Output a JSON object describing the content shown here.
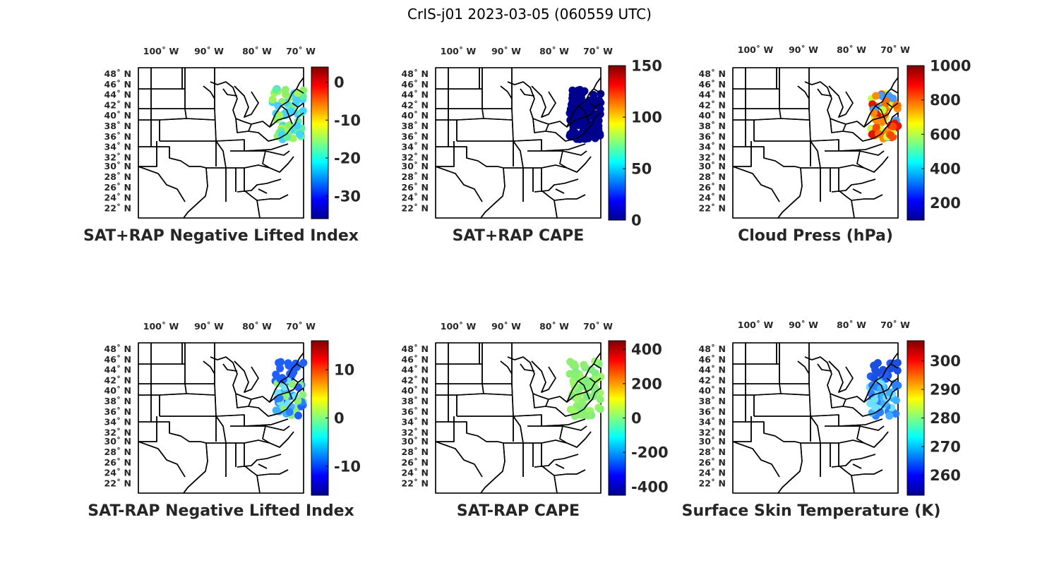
{
  "title": "CrIS-j01 2023-03-05 (060559 UTC)",
  "lon_ticks": [
    "100˚ W",
    "90˚ W",
    "80˚ W",
    "70˚ W"
  ],
  "lat_ticks": [
    "48˚ N",
    "46˚ N",
    "44˚ N",
    "42˚ N",
    "40˚ N",
    "38˚ N",
    "36˚ N",
    "34˚ N",
    "32˚ N",
    "30˚ N",
    "28˚ N",
    "26˚ N",
    "24˚ N",
    "22˚ N"
  ],
  "colormap": "jet",
  "panels": [
    {
      "title": "SAT+RAP Negative Lifted Index",
      "colorbar": {
        "min": -36,
        "max": 4,
        "ticks": [
          0,
          -10,
          -20,
          -30
        ]
      },
      "points": {
        "color": "#2a8c7a",
        "colors": [
          "#3fd6ff",
          "#5ef0a0",
          "#9ff55a",
          "#8ef06a",
          "#4ccfff"
        ]
      }
    },
    {
      "title": "SAT+RAP CAPE",
      "colorbar": {
        "min": 0,
        "max": 150,
        "ticks": [
          150,
          100,
          50,
          0
        ]
      },
      "points": {
        "colors": [
          "#00008f"
        ]
      }
    },
    {
      "title": "Cloud Press (hPa)",
      "colorbar": {
        "min": 100,
        "max": 1000,
        "ticks": [
          1000,
          800,
          600,
          400,
          200
        ]
      },
      "points": {
        "colors": [
          "#ff6a00",
          "#ff8c00",
          "#e01500",
          "#ff4500",
          "#c4ff3b",
          "#3f9fff"
        ]
      }
    },
    {
      "title": "SAT-RAP Negative Lifted Index",
      "colorbar": {
        "min": -16,
        "max": 16,
        "ticks": [
          10,
          0,
          -10
        ]
      },
      "points": {
        "colors": [
          "#1f5fff",
          "#3fb0ff",
          "#6fe0ff",
          "#8df07c",
          "#2a80ff"
        ]
      }
    },
    {
      "title": "SAT-RAP CAPE",
      "colorbar": {
        "min": -450,
        "max": 450,
        "ticks": [
          400,
          200,
          0,
          -200,
          -400
        ]
      },
      "points": {
        "colors": [
          "#8ef070",
          "#9cf56a",
          "#7fee80"
        ]
      }
    },
    {
      "title": "Surface Skin Temperature (K)",
      "colorbar": {
        "min": 253,
        "max": 307,
        "ticks": [
          300,
          290,
          280,
          270,
          260
        ]
      },
      "points": {
        "colors": [
          "#1f5fff",
          "#1a4fe0",
          "#3fb0ff",
          "#6fe0ff",
          "#2a80ff"
        ]
      }
    }
  ]
}
